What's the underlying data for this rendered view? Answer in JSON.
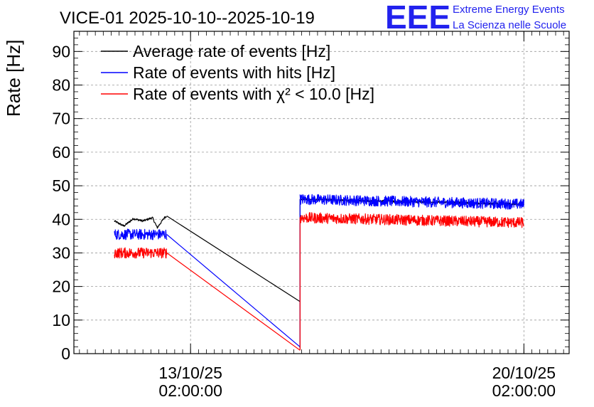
{
  "chart_data": {
    "type": "line",
    "title": "VICE-01 2025-10-10--2025-10-19",
    "xlabel": "",
    "ylabel": "Rate [Hz]",
    "xlim": [
      10.55,
      20.95
    ],
    "ylim": [
      0,
      96
    ],
    "y_ticks": [
      0,
      10,
      20,
      30,
      40,
      50,
      60,
      70,
      80,
      90
    ],
    "x_ticks": [
      {
        "x": 13.0,
        "date": "13/10/25",
        "time": "02:00:00"
      },
      {
        "x": 20.0,
        "date": "20/10/25",
        "time": "02:00:00"
      }
    ],
    "grid": true,
    "legend_position": "top-left",
    "series": [
      {
        "name": "Average rate of events [Hz]",
        "color": "#000000",
        "segments": [
          {
            "x": [
              11.4,
              11.6,
              11.8,
              12.0,
              12.2,
              12.3,
              12.45,
              12.5
            ],
            "y": [
              39.5,
              38.0,
              40.2,
              39.5,
              40.5,
              37.5,
              40.5,
              41.0
            ]
          },
          {
            "x": [
              12.5,
              15.3
            ],
            "y": [
              41.0,
              15.5
            ]
          },
          {
            "x": [
              15.3,
              15.3
            ],
            "y": [
              1.5,
              46.0
            ]
          },
          {
            "x": [
              15.3,
              20.0
            ],
            "y": [
              46.0,
              44.5
            ]
          }
        ],
        "noise": 0.3
      },
      {
        "name": "Rate of events with hits [Hz]",
        "color": "#0000ff",
        "segments": [
          {
            "x": [
              11.4,
              12.5
            ],
            "y": [
              35.5,
              35.5
            ]
          },
          {
            "x": [
              12.5,
              15.3
            ],
            "y": [
              35.5,
              2.0
            ]
          },
          {
            "x": [
              15.3,
              15.3
            ],
            "y": [
              2.0,
              46.0
            ]
          },
          {
            "x": [
              15.3,
              20.0
            ],
            "y": [
              46.0,
              44.5
            ]
          }
        ],
        "noise": 1.6
      },
      {
        "name": "Rate of events with χ² < 10.0 [Hz]",
        "color": "#ff0000",
        "segments": [
          {
            "x": [
              11.4,
              12.5
            ],
            "y": [
              30.0,
              30.0
            ]
          },
          {
            "x": [
              12.5,
              15.3
            ],
            "y": [
              30.0,
              1.0
            ]
          },
          {
            "x": [
              15.3,
              15.3
            ],
            "y": [
              1.0,
              40.5
            ]
          },
          {
            "x": [
              15.3,
              20.0
            ],
            "y": [
              40.5,
              39.0
            ]
          }
        ],
        "noise": 1.6
      }
    ]
  },
  "logo": {
    "mark": "EEE",
    "line1": "Extreme Energy Events",
    "line2": "La Scienza nelle Scuole"
  }
}
